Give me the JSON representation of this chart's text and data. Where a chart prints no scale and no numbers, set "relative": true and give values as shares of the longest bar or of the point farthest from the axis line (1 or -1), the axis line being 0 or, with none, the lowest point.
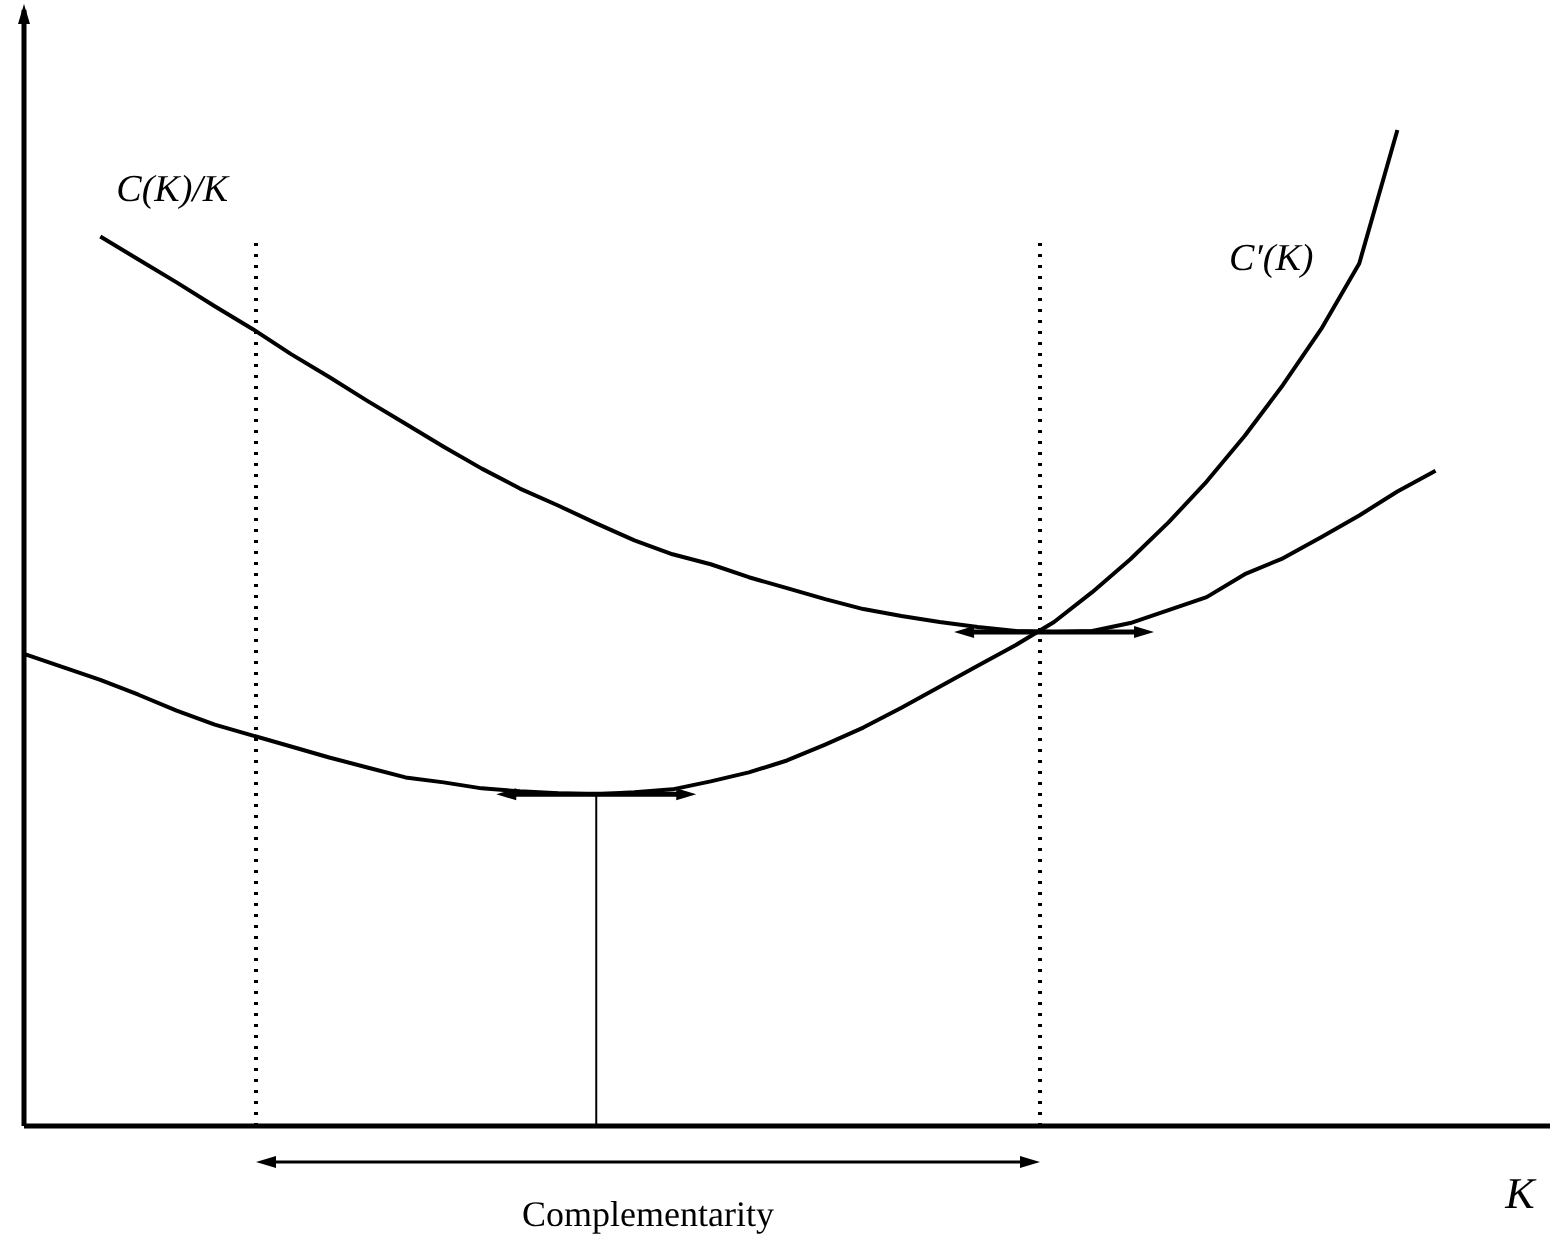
{
  "chart_data": {
    "type": "line",
    "relative": true,
    "xlabel": "K",
    "marker": "none",
    "categories": [
      null,
      null,
      null,
      null,
      null,
      null,
      null,
      null,
      null,
      null,
      null,
      null,
      null,
      null,
      null,
      null,
      null,
      null,
      null,
      null,
      null,
      null,
      null,
      null,
      null,
      null,
      null,
      null,
      null,
      null,
      null,
      null,
      null,
      null,
      null,
      null,
      null,
      null,
      null,
      null,
      null
    ],
    "series": [
      {
        "name": "C(K)/K",
        "color": "#000000",
        "values": [
          null,
          null,
          0.893,
          0.87,
          0.847,
          0.823,
          0.8,
          0.775,
          0.752,
          0.728,
          0.705,
          0.682,
          0.66,
          0.64,
          0.623,
          0.605,
          0.588,
          0.574,
          0.564,
          0.551,
          0.54,
          0.529,
          0.519,
          0.512,
          0.506,
          0.501,
          0.497,
          0.496,
          0.497,
          0.505,
          0.518,
          0.531,
          0.554,
          0.57,
          0.591,
          0.613,
          0.637,
          0.658,
          null,
          null,
          null
        ]
      },
      {
        "name": "C′(K)",
        "color": "#000000",
        "values": [
          0.474,
          0.461,
          0.448,
          0.433,
          0.417,
          0.403,
          0.392,
          0.381,
          0.37,
          0.36,
          0.35,
          0.345,
          0.339,
          0.336,
          0.334,
          0.333,
          0.335,
          0.338,
          0.346,
          0.355,
          0.367,
          0.383,
          0.4,
          0.42,
          0.441,
          0.462,
          0.483,
          0.506,
          0.536,
          0.569,
          0.606,
          0.647,
          0.693,
          0.744,
          0.8,
          0.866,
          1,
          null,
          null,
          null,
          null
        ]
      }
    ],
    "annotations": [
      "Complementarity"
    ]
  }
}
